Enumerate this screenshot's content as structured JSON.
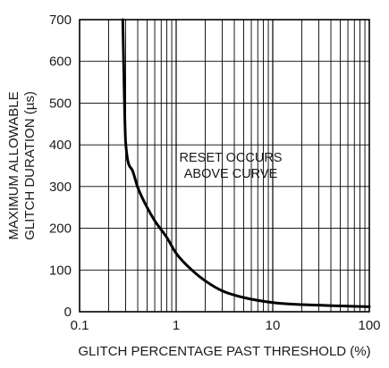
{
  "chart_data": {
    "type": "line",
    "xscale": "log",
    "xlim": [
      0.1,
      100
    ],
    "ylim": [
      0,
      700
    ],
    "grid": true,
    "xlabel": "GLITCH PERCENTAGE PAST THRESHOLD (%)",
    "ylabel_lines": [
      "MAXIMUM ALLOWABLE",
      "GLITCH DURATION (µs)"
    ],
    "x_ticks": [
      0.1,
      1,
      10,
      100
    ],
    "x_tick_labels": [
      "0.1",
      "1",
      "10",
      "100"
    ],
    "y_ticks": [
      0,
      100,
      200,
      300,
      400,
      500,
      600,
      700
    ],
    "y_tick_labels": [
      "0",
      "100",
      "200",
      "300",
      "400",
      "500",
      "600",
      "700"
    ],
    "annotation_lines": [
      "RESET OCCURS",
      "ABOVE CURVE"
    ],
    "series": [
      {
        "x": [
          0.28,
          0.3,
          0.35,
          0.4,
          0.5,
          0.6,
          0.8,
          1,
          1.5,
          2,
          3,
          5,
          10,
          20,
          50,
          100
        ],
        "y": [
          700,
          405,
          340,
          298,
          250,
          218,
          178,
          140,
          97,
          74,
          50,
          34,
          22,
          17,
          14,
          12
        ]
      }
    ],
    "color": "#000000"
  }
}
